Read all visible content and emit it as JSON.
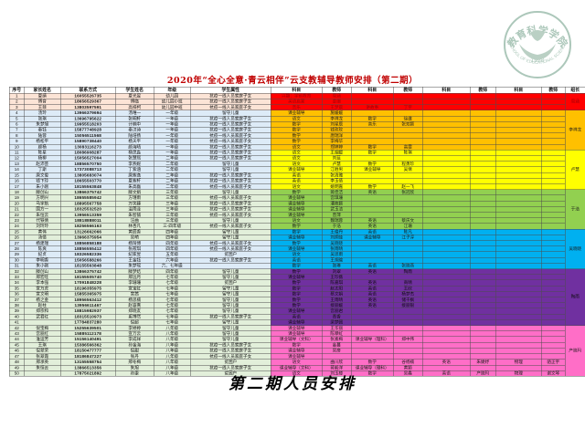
{
  "title": "2020年“全心全意·青云相伴”云支教辅导教师安排（第二期）",
  "caption": "第二期人员安排",
  "logo": {
    "arc_top": "教育科学学院",
    "arc_bottom": "SCHOOL OF EDUCATIONAL SCIENCE",
    "year": "1928",
    "color": "#9ebeae"
  },
  "table": {
    "headers": [
      "序号",
      "家长姓名",
      "联系方式",
      "学生姓名",
      "年级",
      "学生属性",
      "科目",
      "教师",
      "科目",
      "教师",
      "科目",
      "教师",
      "科目",
      "教师",
      "组长"
    ],
    "left_bands": [
      {
        "from": 1,
        "to": 3,
        "color": "#FCE4D6"
      },
      {
        "from": 4,
        "to": 17,
        "color": "#DDEBF7"
      },
      {
        "from": 18,
        "to": 26,
        "color": "#E2EFDA"
      },
      {
        "from": 27,
        "to": 31,
        "color": "#DDEBF7"
      },
      {
        "from": 32,
        "to": 50,
        "color": "#E2EFDA"
      }
    ],
    "right_bands": [
      {
        "from": 1,
        "to": 3,
        "color": "#FF0000",
        "leader": "周涵",
        "text": "#9c0006"
      },
      {
        "from": 4,
        "to": 10,
        "color": "#FFC000",
        "leader": "李祥龙",
        "text": "#1a1a1a"
      },
      {
        "from": 11,
        "to": 17,
        "color": "#FFFF00",
        "leader": "卢慧",
        "text": "#1a1a1a"
      },
      {
        "from": 18,
        "to": 24,
        "color": "#92D050",
        "leader": "于浩",
        "text": "#1a1a1a"
      },
      {
        "from": 25,
        "to": 31,
        "color": "#00B0F0",
        "leader": "吴晓晓",
        "text": "#1a1a1a"
      },
      {
        "from": 32,
        "to": 41,
        "color": "#7030A0",
        "leader": "陶雨",
        "text": "#0d0d0d"
      },
      {
        "from": 42,
        "to": 50,
        "color": "#FF6EC7",
        "leader": "产晓玛",
        "text": "#1a1a1a"
      }
    ],
    "rows": [
      [
        "1",
        "夏缜",
        "16055526735",
        "夏光昱",
        "幼儿园",
        "抗疫一线人员家庭子女",
        "兴趣：学前教育",
        "周涵",
        "",
        "",
        "",
        "",
        "",
        ""
      ],
      [
        "2",
        "傅音",
        "18656529367",
        "傅临",
        "幼儿园小班",
        "抗疫一线人员家庭子女",
        "英语启蒙",
        "姜姗",
        "",
        "",
        "",
        "",
        "",
        ""
      ],
      [
        "3",
        "王菲",
        "13803597591",
        "高梓柯",
        "幼儿园中班",
        "抗疫一线人员家庭子女",
        "音乐",
        "王梦晨",
        "讲故事",
        "丁宇",
        "",
        "",
        "",
        ""
      ],
      [
        "4",
        "汤玲",
        "13966379694",
        "汤唯一",
        "一年级",
        "留守儿童",
        "课业辅导",
        "施媛媛",
        "",
        "",
        "",
        "",
        "",
        ""
      ],
      [
        "5",
        "张琪",
        "13696795622",
        "张明轩",
        "一年级",
        "抗疫一线人员家庭子女",
        "语文",
        "李祥龙",
        "数学",
        "徐维",
        "",
        "",
        "",
        ""
      ],
      [
        "6",
        "朱梦旭",
        "19955518203",
        "计楠中",
        "一年级",
        "抗疫一线人员家庭子女",
        "数学",
        "刘星辰",
        "音乐",
        "张双颖",
        "",
        "",
        "",
        ""
      ],
      [
        "7",
        "秦钰",
        "15877748928",
        "秦汉诗",
        "一年级",
        "抗疫一线人员家庭子女",
        "数学",
        "钱玫玫",
        "",
        "",
        "",
        "",
        "",
        ""
      ],
      [
        "8",
        "陆蓉",
        "15056511568",
        "陆培扬",
        "一年级",
        "抗疫一线人员家庭子女",
        "数学",
        "唐瑞洋",
        "",
        "",
        "",
        "",
        "",
        ""
      ],
      [
        "9",
        "杨松平",
        "15890738440",
        "杨天平",
        "一年级",
        "抗疫一线人员家庭子女",
        "数学",
        "李梅华",
        "",
        "",
        "",
        "",
        "",
        ""
      ],
      [
        "10",
        "颜杨",
        "13083116273",
        "颜海晴",
        "一年级",
        "抗疫一线人员家庭子女",
        "语文",
        "郑婷婷",
        "数学",
        "高雯",
        "",
        "",
        "",
        ""
      ],
      [
        "11",
        "陈星",
        "18086908287",
        "杨思淼",
        "一年级",
        "抗疫一线人员家庭子女",
        "语文",
        "王烟媛",
        "数学",
        "陈琪",
        "",
        "",
        "",
        ""
      ],
      [
        "12",
        "杨柳",
        "15056527004",
        "张慧熙",
        "二年级",
        "抗疫一线人员家庭子女",
        "语文",
        "刘蓝",
        "",
        "",
        "",
        "",
        "",
        ""
      ],
      [
        "13",
        "赵沛芸",
        "18856570750",
        "李燕妮",
        "二年级",
        "留守儿童",
        "语文",
        "卢慧",
        "数学",
        "程勇珍",
        "",
        "",
        "",
        ""
      ],
      [
        "14",
        "丁斯",
        "17373088713",
        "丁紫涵",
        "二年级",
        "留守儿童",
        "课业辅导",
        "江胜男",
        "课业辅导",
        "吴倩",
        "",
        "",
        "",
        ""
      ],
      [
        "15",
        "唐文俊",
        "13805683074",
        "唐紫逸",
        "二年级",
        "抗疫一线人员家庭子女",
        "英语",
        "张清雅",
        "",
        "",
        "",
        "",
        "",
        ""
      ],
      [
        "16",
        "钱下玲",
        "18655503770",
        "夏紫轩",
        "二年级",
        "抗疫一线人员家庭子女",
        "英语",
        "李玉倩",
        "",
        "",
        "",
        "",
        "",
        ""
      ],
      [
        "17",
        "朱小刚",
        "18155563848",
        "朱高磊",
        "二年级",
        "抗疫一线人员家庭子女",
        "语文",
        "姚明嘉",
        "数学",
        "赵一飞",
        "",
        "",
        "",
        ""
      ],
      [
        "18",
        "滕创山",
        "13866375742",
        "滕文娟",
        "三年级",
        "留守儿童",
        "数学",
        "蒋佳洁",
        "英语",
        "张冠欣",
        "",
        "",
        "",
        ""
      ],
      [
        "19",
        "方明兴",
        "18655585942",
        "方瑾雨",
        "三年级",
        "抗疫一线人员家庭子女",
        "课业辅导",
        "宫琪珊",
        "",
        "",
        "",
        "",
        "",
        ""
      ],
      [
        "20",
        "马宇航",
        "18895567758",
        "万笑臻",
        "三年级",
        "抗疫一线人员家庭子女",
        "课业辅导",
        "潘筱颖",
        "",
        "",
        "",
        "",
        "",
        ""
      ],
      [
        "21",
        "国方一",
        "18325532520",
        "温雨泽",
        "三年级",
        "抗疫一线人员家庭子女",
        "课业辅导",
        "武玉洁",
        "",
        "",
        "",
        "",
        "",
        ""
      ],
      [
        "22",
        "朱恒云",
        "13956513359",
        "朱智铺",
        "三年级",
        "抗疫一线人员家庭子女",
        "课业辅导",
        "曾萍",
        "",
        "",
        "",
        "",
        "",
        ""
      ],
      [
        "23",
        "代铁倩",
        "18818888011",
        "汪曲",
        "三年级",
        "留守儿童",
        "语文",
        "魏瑞蓉",
        "英语",
        "蔡庆文",
        "",
        "",
        "",
        ""
      ],
      [
        "24",
        "刘玲玲",
        "18256566163",
        "林杏凡",
        "三-四年级",
        "抗疫一线人员家庭子女",
        "数学",
        "于浩",
        "英语",
        "江珊",
        "",
        "",
        "",
        ""
      ],
      [
        "25",
        "黄伟",
        "13126662066",
        "黄辰香",
        "四年级",
        "留守儿童",
        "数学",
        "王俊丹",
        "英语",
        "陈凡",
        "",
        "",
        "",
        ""
      ],
      [
        "26",
        "汤倩",
        "13966375954",
        "吴萌",
        "四年级",
        "留守儿童",
        "课业辅导",
        "刘炯佳",
        "课业辅导",
        "江子淳",
        "",
        "",
        "",
        ""
      ],
      [
        "27",
        "杨建瑞",
        "18856858188",
        "杨琦博",
        "四年级",
        "抗疫一线人员家庭子女",
        "数学",
        "吴晓晓",
        "",
        "",
        "",
        "",
        "",
        ""
      ],
      [
        "28",
        "陈爽",
        "18856555412",
        "张莜琪",
        "四年级",
        "抗疫一线人员家庭子女",
        "课业辅导",
        "张雨晴",
        "",
        "",
        "",
        "",
        "",
        ""
      ],
      [
        "29",
        "纪贞",
        "18326582336",
        "纪家昱",
        "五年级",
        "贫困户",
        "语文",
        "吴思雨",
        "",
        "",
        "",
        "",
        "",
        ""
      ],
      [
        "30",
        "李明香",
        "15056588266",
        "王金钰",
        "六年级",
        "抗疫一线人员家庭子女",
        "英语",
        "王烔瑜",
        "",
        "",
        "",
        "",
        "",
        ""
      ],
      [
        "31",
        "朱小刚",
        "18155563848",
        "朱梦瑶",
        "六、七年级",
        "",
        "数学",
        "张琳",
        "英语",
        "张晓燕",
        "",
        "",
        "",
        ""
      ],
      [
        "32",
        "滕创山",
        "13866375742",
        "滕梦姞",
        "四年级",
        "留守儿童",
        "数学",
        "刘翠",
        "英语",
        "陶雨",
        "",
        "",
        "",
        ""
      ],
      [
        "33",
        "邢宏旺",
        "18155505740",
        "邢远月",
        "七年级",
        "留守儿童",
        "课业辅导",
        "王珍薇",
        "",
        "",
        "",
        "",
        "",
        ""
      ],
      [
        "34",
        "李本强",
        "17091848228",
        "李珊珊",
        "七年级",
        "贫困户",
        "数学",
        "陈嘉琪",
        "英语",
        "商晴",
        "",
        "",
        "",
        ""
      ],
      [
        "35",
        "宣万虎",
        "18196355975",
        "宣宝虹",
        "七年级",
        "留守儿童",
        "数学",
        "赵太阳",
        "英语",
        "王欣",
        "",
        "",
        "",
        ""
      ],
      [
        "36",
        "宣文明",
        "15855365975",
        "宣茜",
        "七年级",
        "留守儿童",
        "数学",
        "蔡文娟",
        "英语",
        "杨梦杰",
        "",
        "",
        "",
        ""
      ],
      [
        "37",
        "杨之金",
        "18956563412",
        "杨思楠",
        "七年级",
        "留守儿童",
        "数学",
        "王雨晴",
        "英语",
        "储千枫",
        "",
        "",
        "",
        ""
      ],
      [
        "38",
        "赵柱",
        "13956611467",
        "赵容熹",
        "七年级",
        "留守儿童",
        "数学",
        "接丽媛",
        "英语",
        "接丽银",
        "",
        "",
        "",
        ""
      ],
      [
        "39",
        "郑宗和",
        "18815982937",
        "郑晓友",
        "七年级",
        "留守儿童",
        "课业辅导",
        "宫丽君",
        "",
        "",
        "",
        "",
        "",
        ""
      ],
      [
        "40",
        "武君红",
        "18315510973",
        "奚博然",
        "七年级",
        "抗疫一线人员家庭子女",
        "英语",
        "青香",
        "",
        "",
        "",
        "",
        "",
        ""
      ],
      [
        "41",
        "",
        "17784837280",
        "倪超",
        "七年级",
        "留守儿童",
        "课业辅导",
        "梁梦圆",
        "",
        "",
        "",
        "",
        "",
        ""
      ],
      [
        "42",
        "倪宝梅",
        "15255639501",
        "李婷婷",
        "八年级",
        "留守儿童",
        "课业辅导",
        "王华丽",
        "",
        "",
        "",
        "",
        "",
        ""
      ],
      [
        "43",
        "宫丽红",
        "15885112178",
        "宣万云",
        "八年级",
        "留守儿童",
        "课业辅导",
        "陈攀虹",
        "",
        "",
        "",
        "",
        "",
        ""
      ],
      [
        "44",
        "淮运芳",
        "15156140491",
        "李成祥",
        "八年级",
        "留守儿童",
        "课业辅导（文科）",
        "张素梅",
        "课业辅导（理科）",
        "郑中伟",
        "",
        "",
        "",
        ""
      ],
      [
        "45",
        "王琪",
        "15386566362",
        "孙金海",
        "八年级",
        "抗疫一线人员家庭子女",
        "数学",
        "金蔓",
        "",
        "",
        "",
        "",
        "",
        ""
      ],
      [
        "46",
        "倪翠荣",
        "18150477777",
        "倪甜",
        "八年级",
        "抗疫一线人员家庭子女",
        "课业辅导",
        "吴彦",
        "",
        "",
        "",
        "",
        "",
        ""
      ],
      [
        "47",
        "张翠霞",
        "18186847227",
        "张丹",
        "八年级",
        "抗疫一线人员家庭子女",
        "课业辅导",
        "",
        "",
        "",
        "",
        "",
        "",
        ""
      ],
      [
        "48",
        "邢承英",
        "13155558754",
        "邢冬梅",
        "八年级",
        "贫困户",
        "语文",
        "曲川欣",
        "数学",
        "谷杨楠",
        "英语",
        "朱婕妤",
        "物理",
        "骆正宇"
      ],
      [
        "49",
        "朱恒云",
        "13866513356",
        "朱旭",
        "八年级",
        "抗疫一线人员家庭子女",
        "课业辅导（文科）",
        "蒋毅洋",
        "课业辅导（理科）",
        "黄颖",
        "",
        "",
        "",
        ""
      ],
      [
        "50",
        "",
        "17875021892",
        "孙康",
        "八年级",
        "贫困户",
        "语文",
        "刘玉楼",
        "数学",
        "吴鑫",
        "英语",
        "产晓玛",
        "物理",
        "谢文琴"
      ]
    ]
  }
}
